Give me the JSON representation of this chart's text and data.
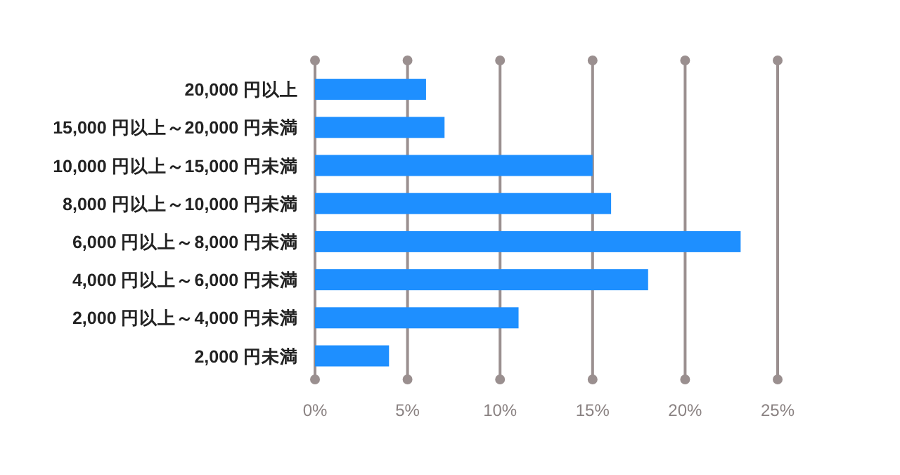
{
  "chart_data": {
    "type": "bar",
    "orientation": "horizontal",
    "categories": [
      "20,000 円以上",
      "15,000 円以上～20,000 円未満",
      "10,000 円以上～15,000 円未満",
      "8,000 円以上～10,000 円未満",
      "6,000 円以上～8,000 円未満",
      "4,000 円以上～6,000 円未満",
      "2,000 円以上～4,000 円未満",
      "2,000 円未満"
    ],
    "values": [
      6,
      7,
      15,
      16,
      23,
      18,
      11,
      4
    ],
    "color": "#1e8fff",
    "xlim": [
      0,
      25
    ],
    "xticks": [
      {
        "value": 0,
        "label": "0%"
      },
      {
        "value": 5,
        "label": "5%"
      },
      {
        "value": 10,
        "label": "10%"
      },
      {
        "value": 15,
        "label": "15%"
      },
      {
        "value": 20,
        "label": "20%"
      },
      {
        "value": 25,
        "label": "25%"
      }
    ],
    "grid": "x"
  }
}
